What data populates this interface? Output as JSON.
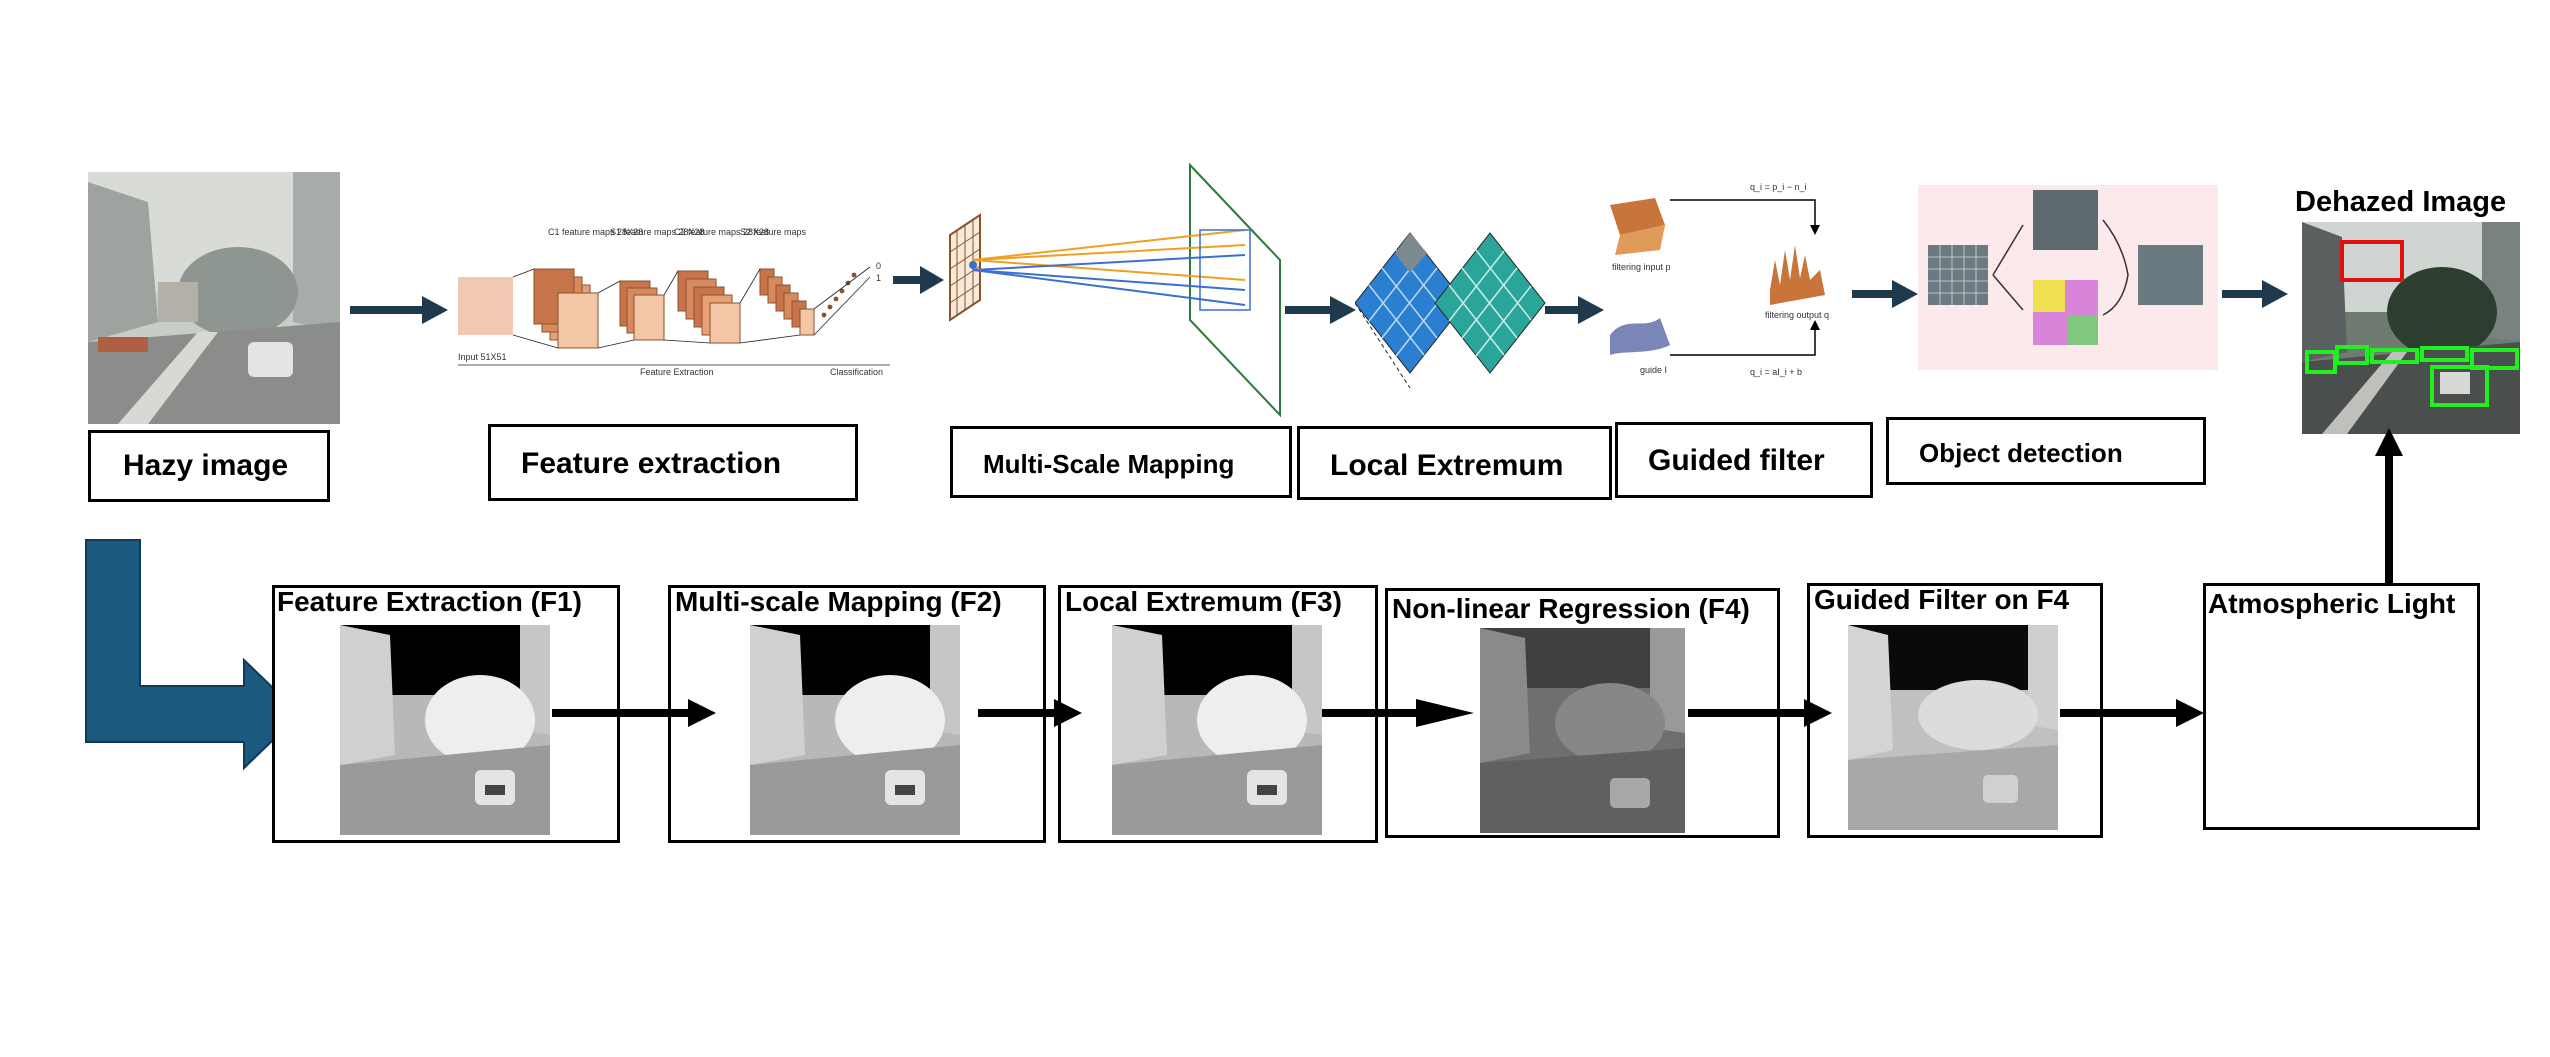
{
  "top_row": {
    "hazy_image_label": "Hazy image",
    "feature_extraction_label": "Feature extraction",
    "multi_scale_mapping_label": "Multi-Scale Mapping",
    "local_extremum_label": "Local Extremum",
    "guided_filter_label": "Guided filter",
    "object_detection_label": "Object detection",
    "dehazed_image_title": "Dehazed Image"
  },
  "cnn_figure": {
    "c1": "C1 feature maps 28X28",
    "s1": "S1 feature maps 28X28",
    "c2": "C2 feature maps 28X28",
    "s2": "S2 feature maps",
    "input": "Input 51X51",
    "feature_extraction": "Feature Extraction",
    "classification": "Classification",
    "out0": "0",
    "out1": "1"
  },
  "guided_figure": {
    "filtering_input": "filtering input p",
    "guide": "guide I",
    "filtering_output": "filtering output q",
    "eq_top": "q_i = p_i − n_i",
    "eq_bottom": "q_i = aI_i + b"
  },
  "bottom_row": {
    "f1_title": "Feature Extraction (F1)",
    "f2_title": "Multi-scale Mapping (F2)",
    "f3_title": "Local Extremum (F3)",
    "f4_title": "Non-linear Regression (F4)",
    "gf_title": "Guided Filter on F4",
    "atm_title": "Atmospheric Light"
  },
  "colors": {
    "arrow_dark": "#1e3a4c",
    "big_arrow": "#1b5a7e",
    "detection_green": "#22ee22",
    "detection_red": "#e01010"
  }
}
